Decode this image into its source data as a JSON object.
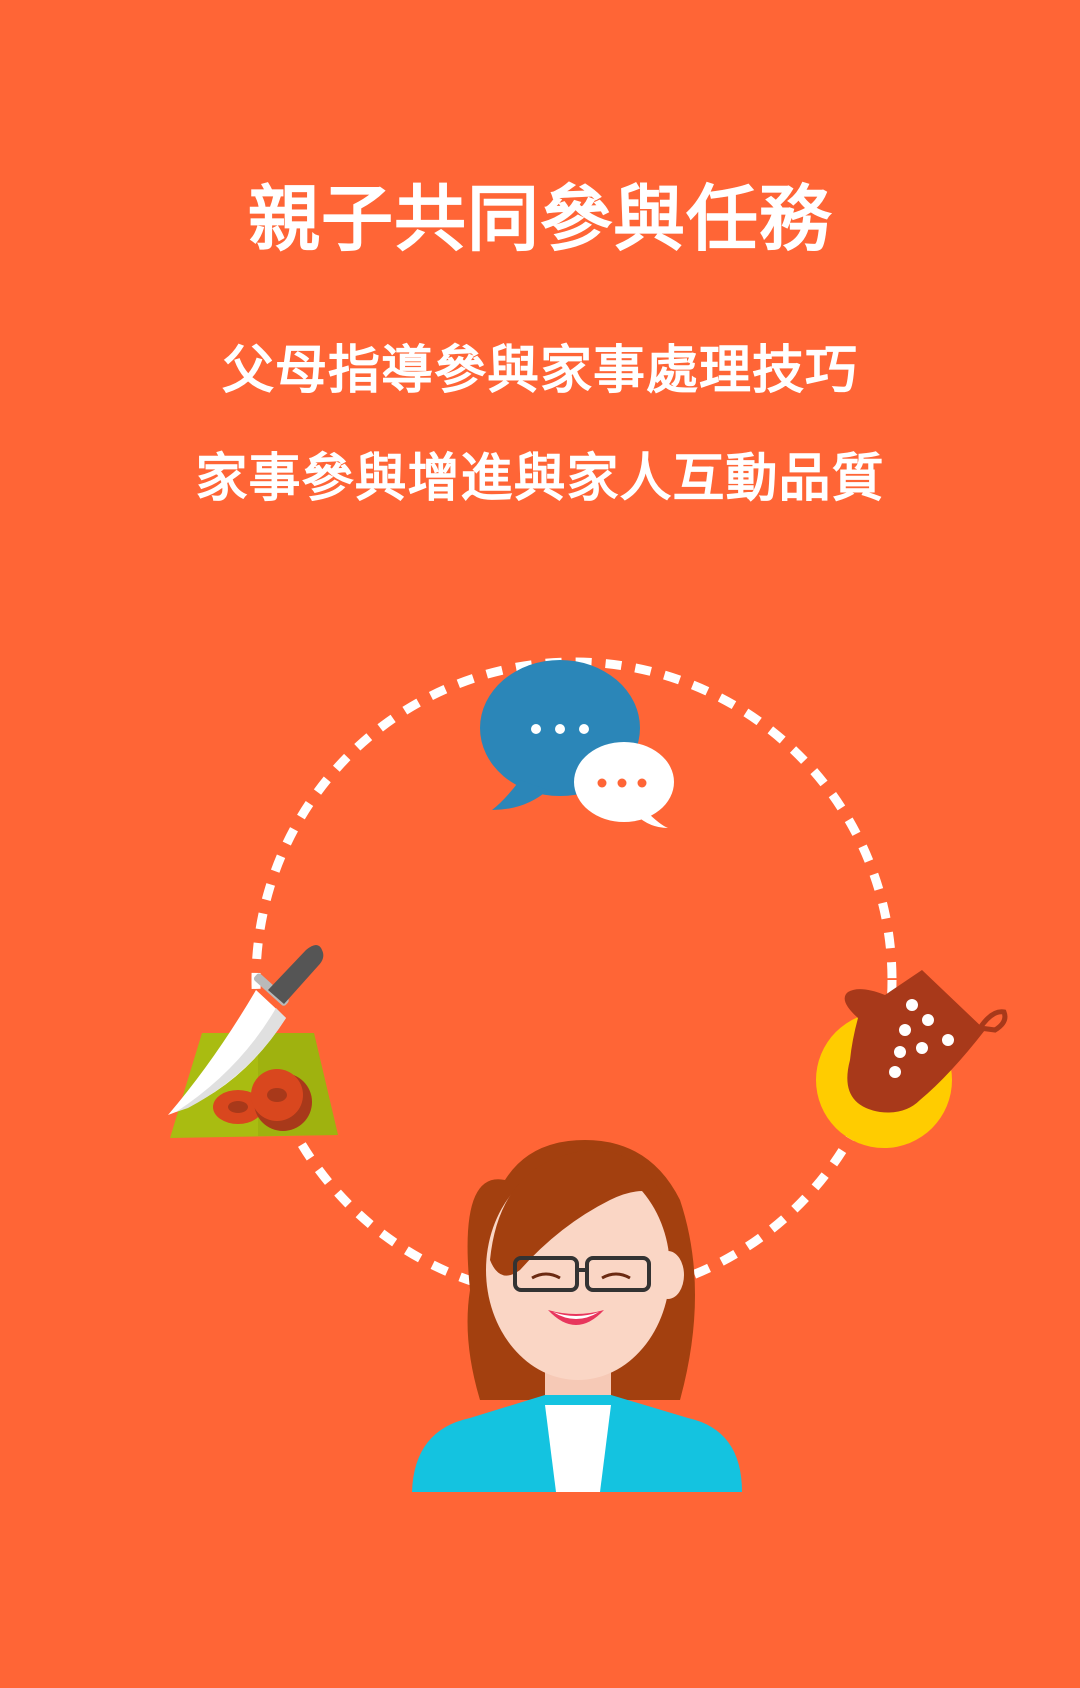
{
  "colors": {
    "background": "#FF6536",
    "text": "#FFFFFF",
    "bubble_blue": "#2B86B8",
    "mitt_brown": "#A8391A",
    "plate_yellow": "#FFCC00",
    "board_green": "#A9BC11",
    "jacket_cyan": "#14C3E0",
    "hair_brown": "#A3400F"
  },
  "page": {
    "title": "親子共同參與任務",
    "subtitle_line1": "父母指導參與家事處理技巧",
    "subtitle_line2": "家事參與增進與家人互動品質"
  },
  "illustration": {
    "icons": [
      "chat-bubbles-icon",
      "knife-cutting-board-icon",
      "oven-mitt-icon",
      "woman-avatar-icon"
    ]
  }
}
